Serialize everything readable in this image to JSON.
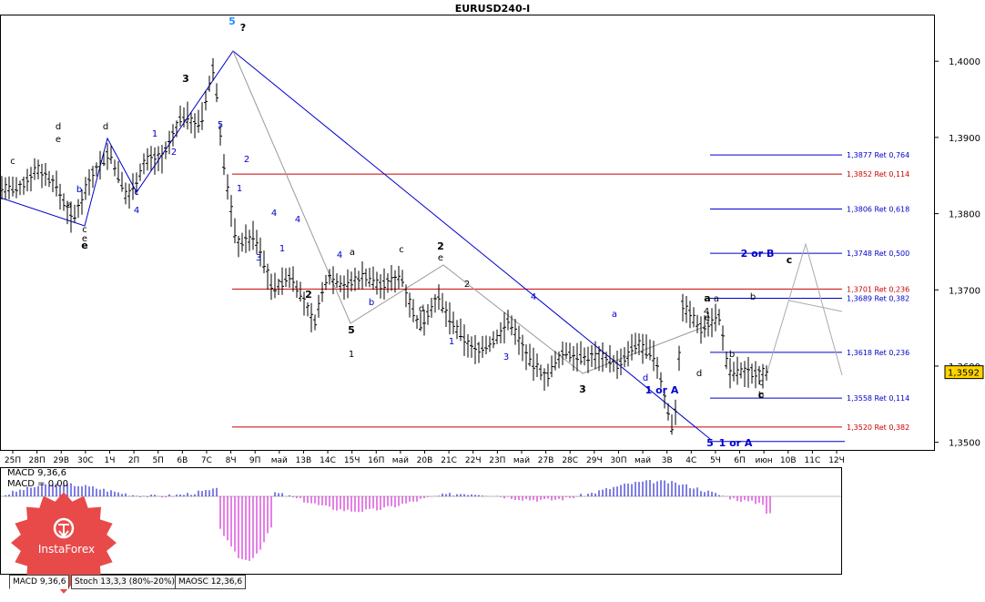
{
  "window": {
    "title": "EURUSD240-I"
  },
  "chart_data": {
    "type": "line",
    "title": "EURUSD240-I",
    "price_axis": {
      "min": 1.349,
      "max": 1.406,
      "ticks": [
        "1,4000",
        "1,3900",
        "1,3800",
        "1,3700",
        "1,3600",
        "1,3500"
      ]
    },
    "current_price": "1,3592",
    "x_labels": [
      "25П",
      "28П",
      "29В",
      "30С",
      "1Ч",
      "2П",
      "5П",
      "6В",
      "7С",
      "8Ч",
      "9П",
      "май",
      "13В",
      "14С",
      "15Ч",
      "16П",
      "май",
      "20В",
      "21С",
      "22Ч",
      "23П",
      "май",
      "27В",
      "28С",
      "29Ч",
      "30П",
      "май",
      "3В",
      "4С",
      "5Ч",
      "6П",
      "июн",
      "10В",
      "11С",
      "12Ч"
    ],
    "price_path": [
      {
        "x": 0,
        "y": 1.3835
      },
      {
        "x": 0.02,
        "y": 1.383
      },
      {
        "x": 0.04,
        "y": 1.386
      },
      {
        "x": 0.06,
        "y": 1.384
      },
      {
        "x": 0.08,
        "y": 1.379
      },
      {
        "x": 0.1,
        "y": 1.385
      },
      {
        "x": 0.12,
        "y": 1.388
      },
      {
        "x": 0.14,
        "y": 1.382
      },
      {
        "x": 0.16,
        "y": 1.387
      },
      {
        "x": 0.18,
        "y": 1.3875
      },
      {
        "x": 0.2,
        "y": 1.393
      },
      {
        "x": 0.22,
        "y": 1.3915
      },
      {
        "x": 0.235,
        "y": 1.3995
      },
      {
        "x": 0.245,
        "y": 1.387
      },
      {
        "x": 0.26,
        "y": 1.376
      },
      {
        "x": 0.28,
        "y": 1.377
      },
      {
        "x": 0.3,
        "y": 1.37
      },
      {
        "x": 0.32,
        "y": 1.372
      },
      {
        "x": 0.345,
        "y": 1.3655
      },
      {
        "x": 0.36,
        "y": 1.372
      },
      {
        "x": 0.38,
        "y": 1.3705
      },
      {
        "x": 0.4,
        "y": 1.372
      },
      {
        "x": 0.42,
        "y": 1.3705
      },
      {
        "x": 0.44,
        "y": 1.372
      },
      {
        "x": 0.46,
        "y": 1.365
      },
      {
        "x": 0.48,
        "y": 1.369
      },
      {
        "x": 0.5,
        "y": 1.365
      },
      {
        "x": 0.52,
        "y": 1.362
      },
      {
        "x": 0.54,
        "y": 1.363
      },
      {
        "x": 0.56,
        "y": 1.366
      },
      {
        "x": 0.58,
        "y": 1.361
      },
      {
        "x": 0.6,
        "y": 1.3585
      },
      {
        "x": 0.62,
        "y": 1.362
      },
      {
        "x": 0.64,
        "y": 1.361
      },
      {
        "x": 0.66,
        "y": 1.3615
      },
      {
        "x": 0.68,
        "y": 1.36
      },
      {
        "x": 0.7,
        "y": 1.363
      },
      {
        "x": 0.72,
        "y": 1.361
      },
      {
        "x": 0.74,
        "y": 1.351
      },
      {
        "x": 0.75,
        "y": 1.368
      },
      {
        "x": 0.77,
        "y": 1.365
      },
      {
        "x": 0.79,
        "y": 1.3665
      },
      {
        "x": 0.8,
        "y": 1.359
      },
      {
        "x": 0.81,
        "y": 1.3592
      }
    ],
    "fib_levels": [
      {
        "label": "1,3877 Ret 0,764",
        "value": 1.3877,
        "color": "#0000cc"
      },
      {
        "label": "1,3852 Ret 0,114",
        "value": 1.3852,
        "color": "#cc0000"
      },
      {
        "label": "1,3806 Ret 0,618",
        "value": 1.3806,
        "color": "#0000cc"
      },
      {
        "label": "1,3748 Ret 0,500",
        "value": 1.3748,
        "color": "#0000cc"
      },
      {
        "label": "1,3701 Ret 0,236",
        "value": 1.3701,
        "color": "#cc0000"
      },
      {
        "label": "1,3689 Ret 0,382",
        "value": 1.3689,
        "color": "#0000cc"
      },
      {
        "label": "1,3618 Ret 0,236",
        "value": 1.3618,
        "color": "#0000cc"
      },
      {
        "label": "1,3558 Ret 0,114",
        "value": 1.3558,
        "color": "#0000cc"
      },
      {
        "label": "1,3520 Ret 0,382",
        "value": 1.352,
        "color": "#cc0000"
      }
    ],
    "wave_labels": [
      "c",
      "d",
      "e",
      "a",
      "d",
      "b",
      "c",
      "e",
      "c",
      "4",
      "1",
      "2",
      "e",
      "3",
      "5",
      "?",
      "4",
      "1",
      "2",
      "3",
      "4",
      "1",
      "2",
      "a",
      "4",
      "5",
      "1",
      "b",
      "c",
      "d",
      "2",
      "e",
      "3",
      "a",
      "d",
      "2",
      "5",
      "1",
      "4",
      "3",
      "1 or A",
      "a",
      "b",
      "c",
      "d",
      "e",
      "4",
      "a",
      "b",
      "c",
      "b",
      "2 or B",
      "c",
      "5",
      "1 or A"
    ],
    "macd": {
      "label": "MACD 9,36,6",
      "value_label": "MACD = 0,00"
    }
  },
  "bottom_tabs": [
    "MACD 9,36,6",
    "Stoch 13,3,3 (80%-20%)",
    "MAOSC 12,36,6"
  ],
  "logo": {
    "text": "InstaForex"
  },
  "colors": {
    "bull": "#0000cc",
    "bear": "#cc0000",
    "macd_pos": "#0000cc",
    "macd_neg": "#cc00cc"
  }
}
